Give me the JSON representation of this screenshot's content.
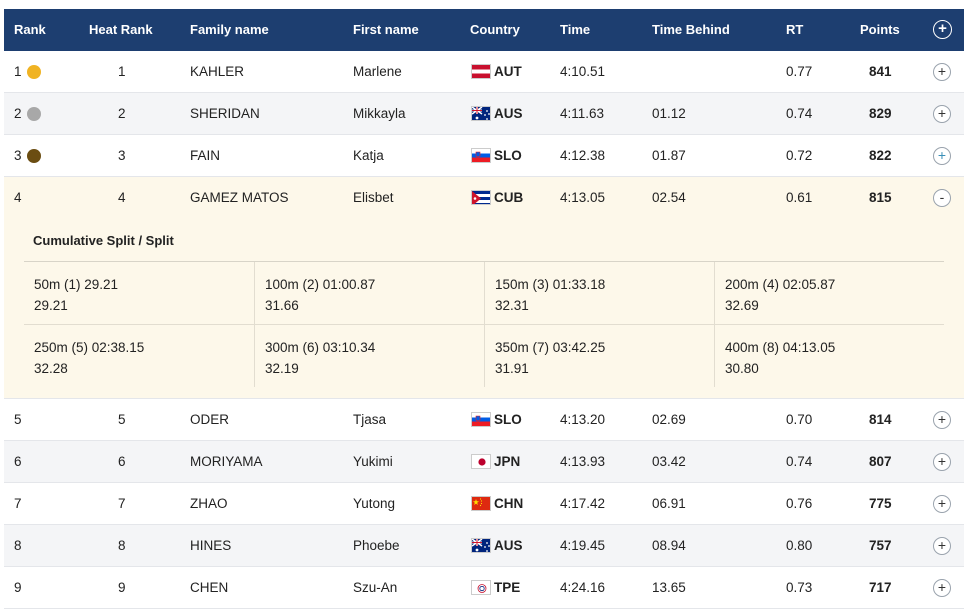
{
  "header": {
    "rank": "Rank",
    "heat_rank": "Heat Rank",
    "family_name": "Family name",
    "first_name": "First name",
    "country": "Country",
    "time": "Time",
    "time_behind": "Time Behind",
    "rt": "RT",
    "points": "Points",
    "expand_all_icon": "+"
  },
  "colors": {
    "header_bg": "#1d3e70",
    "gold": "#f0b323",
    "silver": "#a8a8a8",
    "bronze": "#6b4d12",
    "expanded_bg": "#fdf8ea"
  },
  "rows": [
    {
      "rank": "1",
      "heat_rank": "1",
      "family_name": "KAHLER",
      "first_name": "Marlene",
      "country": "AUT",
      "time": "4:10.51",
      "time_behind": "",
      "rt": "0.77",
      "points": "841",
      "toggle": "+",
      "medal": "gold"
    },
    {
      "rank": "2",
      "heat_rank": "2",
      "family_name": "SHERIDAN",
      "first_name": "Mikkayla",
      "country": "AUS",
      "time": "4:11.63",
      "time_behind": "01.12",
      "rt": "0.74",
      "points": "829",
      "toggle": "+",
      "medal": "silver"
    },
    {
      "rank": "3",
      "heat_rank": "3",
      "family_name": "FAIN",
      "first_name": "Katja",
      "country": "SLO",
      "time": "4:12.38",
      "time_behind": "01.87",
      "rt": "0.72",
      "points": "822",
      "toggle": "+",
      "medal": "bronze"
    },
    {
      "rank": "4",
      "heat_rank": "4",
      "family_name": "GAMEZ MATOS",
      "first_name": "Elisbet",
      "country": "CUB",
      "time": "4:13.05",
      "time_behind": "02.54",
      "rt": "0.61",
      "points": "815",
      "toggle": "-"
    },
    {
      "rank": "5",
      "heat_rank": "5",
      "family_name": "ODER",
      "first_name": "Tjasa",
      "country": "SLO",
      "time": "4:13.20",
      "time_behind": "02.69",
      "rt": "0.70",
      "points": "814",
      "toggle": "+"
    },
    {
      "rank": "6",
      "heat_rank": "6",
      "family_name": "MORIYAMA",
      "first_name": "Yukimi",
      "country": "JPN",
      "time": "4:13.93",
      "time_behind": "03.42",
      "rt": "0.74",
      "points": "807",
      "toggle": "+"
    },
    {
      "rank": "7",
      "heat_rank": "7",
      "family_name": "ZHAO",
      "first_name": "Yutong",
      "country": "CHN",
      "time": "4:17.42",
      "time_behind": "06.91",
      "rt": "0.76",
      "points": "775",
      "toggle": "+"
    },
    {
      "rank": "8",
      "heat_rank": "8",
      "family_name": "HINES",
      "first_name": "Phoebe",
      "country": "AUS",
      "time": "4:19.45",
      "time_behind": "08.94",
      "rt": "0.80",
      "points": "757",
      "toggle": "+"
    },
    {
      "rank": "9",
      "heat_rank": "9",
      "family_name": "CHEN",
      "first_name": "Szu-An",
      "country": "TPE",
      "time": "4:24.16",
      "time_behind": "13.65",
      "rt": "0.73",
      "points": "717",
      "toggle": "+"
    }
  ],
  "splits": {
    "title": "Cumulative Split / Split",
    "items": [
      {
        "cumulative": "50m (1) 29.21",
        "split": "29.21"
      },
      {
        "cumulative": "100m (2) 01:00.87",
        "split": "31.66"
      },
      {
        "cumulative": "150m (3) 01:33.18",
        "split": "32.31"
      },
      {
        "cumulative": "200m (4) 02:05.87",
        "split": "32.69"
      },
      {
        "cumulative": "250m (5) 02:38.15",
        "split": "32.28"
      },
      {
        "cumulative": "300m (6) 03:10.34",
        "split": "32.19"
      },
      {
        "cumulative": "350m (7) 03:42.25",
        "split": "31.91"
      },
      {
        "cumulative": "400m (8) 04:13.05",
        "split": "30.80"
      }
    ]
  }
}
